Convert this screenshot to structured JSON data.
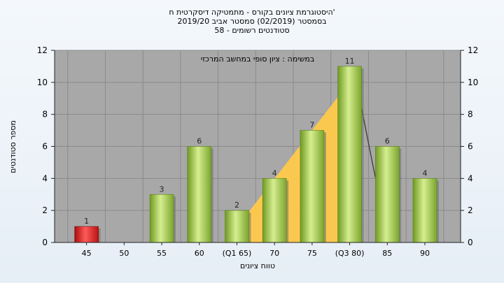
{
  "chart_data": {
    "type": "bar",
    "title_lines": [
      "היסטוגרמת ציונים בקורס - מתמטיקה דיסקרטית ח'",
      "בסמסטר  (02/2019)  סמסטר אביב 2019/20",
      "סטודנטים רשומים - 58"
    ],
    "annotation": "במשימה : ציון סופי במחשב המרכזי",
    "xlabel": "טווח ציונים",
    "ylabel": "מספר סטודנטים",
    "categories": [
      "45",
      "50",
      "55",
      "60",
      "(Q1 65)",
      "70",
      "75",
      "(Q3 80)",
      "85",
      "90"
    ],
    "values": [
      1,
      0,
      3,
      6,
      2,
      4,
      7,
      11,
      6,
      4
    ],
    "data_labels": [
      "1",
      "",
      "3",
      "6",
      "2",
      "4",
      "7",
      "11",
      "6",
      "4"
    ],
    "ylim": [
      0,
      12
    ],
    "yticks": [
      "0",
      "2",
      "4",
      "6",
      "8",
      "10",
      "12"
    ],
    "ytick_values": [
      0,
      2,
      4,
      6,
      8,
      10,
      12
    ],
    "grid": true,
    "quartile_area": {
      "from_category": "(Q1 65)",
      "to_category": "(Q3 80)"
    },
    "colors": {
      "plot_bg": "#a8a8a8",
      "bar_green": "#9cc24a",
      "bar_red": "#d81e1e",
      "quartile_fill": "#ffc94a"
    }
  }
}
